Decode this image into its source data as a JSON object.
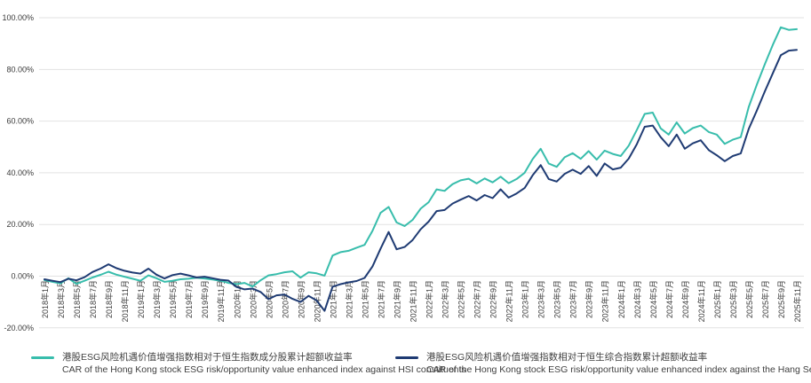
{
  "chart_data": {
    "type": "line",
    "title": "",
    "xlabel": "",
    "ylabel": "",
    "ylim": [
      -20,
      100
    ],
    "y_tick_labels": [
      "100.00%",
      "80.00%",
      "60.00%",
      "40.00%",
      "20.00%",
      "0.00%",
      "-20.00%"
    ],
    "y_tick_values": [
      100,
      80,
      60,
      40,
      20,
      0,
      -20
    ],
    "grid": "horizontal",
    "legend_position": "bottom",
    "x_period": "monthly 2018-01 to 2025-11, tick label every 2 months",
    "x_tick_labels": [
      "2018年1月",
      "2018年3月",
      "2018年5月",
      "2018年7月",
      "2018年9月",
      "2018年11月",
      "2019年1月",
      "2019年3月",
      "2019年5月",
      "2019年7月",
      "2019年9月",
      "2019年11月",
      "2020年1月",
      "2020年3月",
      "2020年5月",
      "2020年7月",
      "2020年9月",
      "2020年11月",
      "2021年1月",
      "2021年3月",
      "2021年5月",
      "2021年7月",
      "2021年9月",
      "2021年11月",
      "2022年1月",
      "2022年3月",
      "2022年5月",
      "2022年7月",
      "2022年9月",
      "2022年11月",
      "2023年1月",
      "2023年3月",
      "2023年5月",
      "2023年7月",
      "2023年9月",
      "2023年11月",
      "2024年1月",
      "2024年3月",
      "2024年5月",
      "2024年7月",
      "2024年9月",
      "2024年11月",
      "2025年1月",
      "2025年3月",
      "2025年5月",
      "2025年7月",
      "2025年9月",
      "2025年11月"
    ],
    "series": [
      {
        "name_zh": "港股ESG风险机遇价值增强指数相对于恒生指数成分股累计超额收益率",
        "name_en": "CAR of the Hong Kong stock ESG risk/opportunity value enhanced index against HSI constituents",
        "color": "#38BDAC",
        "values_pct": [
          -1.5,
          -2.2,
          -2.8,
          -0.8,
          -3.0,
          -1.8,
          -0.5,
          0.5,
          1.7,
          0.6,
          -0.2,
          -1.0,
          -1.8,
          0.3,
          -0.8,
          -2.2,
          -1.8,
          -1.2,
          -1.0,
          -0.6,
          -0.9,
          -1.3,
          -1.8,
          -2.6,
          -3.1,
          -2.6,
          -4.0,
          -1.6,
          0.3,
          0.8,
          1.5,
          1.9,
          -0.6,
          1.5,
          1.1,
          0.2,
          8.0,
          9.3,
          9.8,
          11.0,
          12.1,
          17.6,
          24.5,
          26.8,
          20.8,
          19.4,
          21.8,
          26.1,
          28.6,
          33.6,
          33.0,
          35.6,
          37.1,
          37.7,
          35.9,
          37.8,
          36.3,
          38.5,
          36.0,
          37.6,
          40.0,
          45.3,
          49.3,
          43.6,
          42.3,
          46.0,
          47.6,
          45.4,
          48.4,
          45.1,
          48.6,
          47.3,
          46.5,
          50.5,
          56.5,
          62.8,
          63.3,
          57.2,
          54.8,
          59.5,
          55.2,
          57.3,
          58.3,
          55.8,
          54.8,
          51.2,
          52.8,
          53.8,
          65.5,
          74.0,
          82.0,
          89.5,
          96.3,
          95.3,
          95.6
        ]
      },
      {
        "name_zh": "港股ESG风险机遇价值增强指数相对于恒生综合指数累计超额收益率",
        "name_en": "CAR of the Hong Kong stock ESG risk/opportunity value enhanced index against the Hang Seng Composite Index",
        "color": "#1F3B73",
        "values_pct": [
          -1.2,
          -1.8,
          -2.3,
          -1.0,
          -1.6,
          -0.4,
          1.6,
          2.9,
          4.6,
          3.1,
          2.1,
          1.4,
          1.0,
          2.9,
          0.6,
          -0.9,
          0.4,
          1.0,
          0.3,
          -0.5,
          -0.2,
          -0.8,
          -1.4,
          -1.7,
          -4.2,
          -5.1,
          -4.8,
          -6.1,
          -8.9,
          -7.4,
          -7.1,
          -8.8,
          -10.0,
          -7.6,
          -9.4,
          -13.4,
          -4.1,
          -3.1,
          -2.4,
          -1.9,
          -0.7,
          3.8,
          10.6,
          17.1,
          10.4,
          11.3,
          14.0,
          18.1,
          21.1,
          25.2,
          25.6,
          28.1,
          29.6,
          31.0,
          29.3,
          31.4,
          30.2,
          33.6,
          30.4,
          32.0,
          34.1,
          39.0,
          43.0,
          37.6,
          36.6,
          39.6,
          41.2,
          39.6,
          42.6,
          38.8,
          43.6,
          41.3,
          42.0,
          45.5,
          51.0,
          57.8,
          58.3,
          53.8,
          50.3,
          54.8,
          49.3,
          51.4,
          52.6,
          48.8,
          46.8,
          44.5,
          46.5,
          47.5,
          57.0,
          64.0,
          71.5,
          78.5,
          85.5,
          87.3,
          87.6
        ]
      }
    ],
    "colors": {
      "grid_line": "#E2E2E2",
      "tick_text": "#3A3A3A",
      "legend_text": "#404040",
      "background": "#FFFFFF"
    }
  }
}
